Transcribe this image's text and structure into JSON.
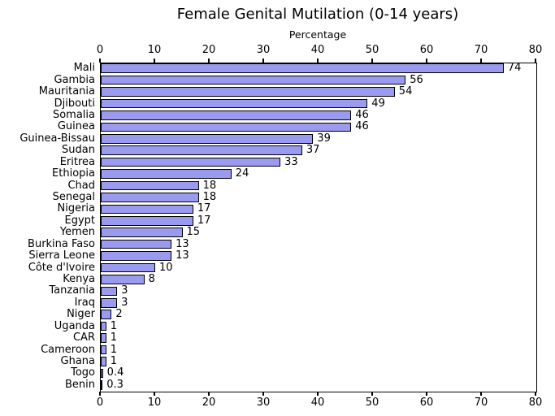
{
  "chart_data": {
    "type": "bar",
    "orientation": "horizontal",
    "title": "Female Genital Mutilation (0-14 years)",
    "xlabel": "Percentage",
    "xlabel_position": "top",
    "categories": [
      "Mali",
      "Gambia",
      "Mauritania",
      "Djibouti",
      "Somalia",
      "Guinea",
      "Guinea-Bissau",
      "Sudan",
      "Eritrea",
      "Ethiopia",
      "Chad",
      "Senegal",
      "Nigeria",
      "Egypt",
      "Yemen",
      "Burkina Faso",
      "Sierra Leone",
      "Côte d'Ivoire",
      "Kenya",
      "Tanzania",
      "Iraq",
      "Niger",
      "Uganda",
      "CAR",
      "Cameroon",
      "Ghana",
      "Togo",
      "Benin"
    ],
    "values": [
      74,
      56,
      54,
      49,
      46,
      46,
      39,
      37,
      33,
      24,
      18,
      18,
      17,
      17,
      15,
      13,
      13,
      10,
      8,
      3,
      3,
      2,
      1,
      1,
      1,
      1,
      0.4,
      0.3
    ],
    "value_labels": [
      "74",
      "56",
      "54",
      "49",
      "46",
      "46",
      "39",
      "37",
      "33",
      "24",
      "18",
      "18",
      "17",
      "17",
      "15",
      "13",
      "13",
      "10",
      "8",
      "3",
      "3",
      "2",
      "1",
      "1",
      "1",
      "1",
      "0.4",
      "0.3"
    ],
    "xlim": [
      0,
      80
    ],
    "xticks": [
      0,
      10,
      20,
      30,
      40,
      50,
      60,
      70,
      80
    ],
    "xtick_labels": [
      "0",
      "10",
      "20",
      "30",
      "40",
      "50",
      "60",
      "70",
      "80"
    ],
    "ticks_position": "both",
    "grid": false,
    "legend": null,
    "bar_color": "#9a9aee",
    "bar_edge_color": "#000000",
    "text_color": "#000000",
    "background_color": "#ffffff"
  }
}
